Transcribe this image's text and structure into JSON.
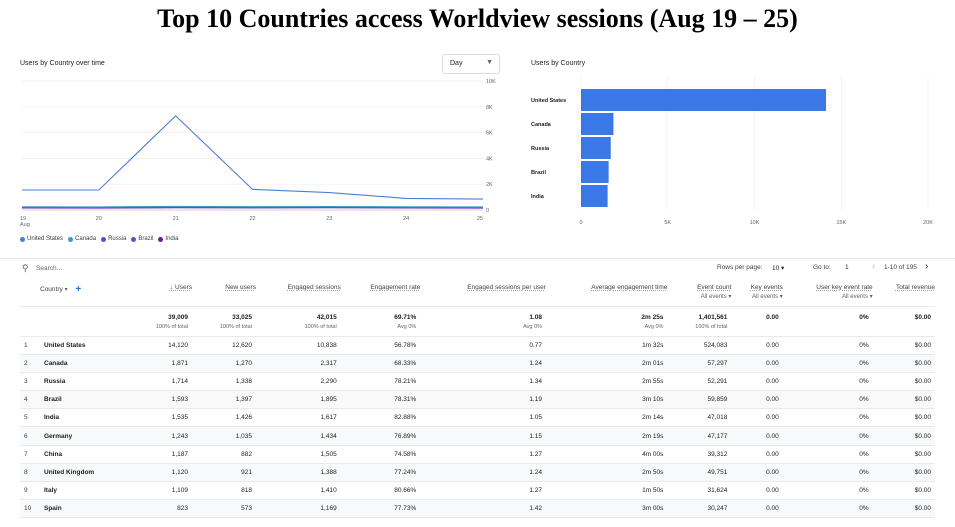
{
  "page_title": "Top 10 Countries access Worldview sessions (Aug 19 – 25)",
  "line_card": {
    "title": "Users by Country over time",
    "granularity": "Day",
    "legend": [
      {
        "label": "United States",
        "color": "#4a7fd4"
      },
      {
        "label": "Canada",
        "color": "#3d9ad1"
      },
      {
        "label": "Russia",
        "color": "#5b4ad6"
      },
      {
        "label": "Brazil",
        "color": "#7b3fd0"
      },
      {
        "label": "India",
        "color": "#6a1b9a"
      }
    ]
  },
  "bar_card": {
    "title": "Users by Country"
  },
  "chart_data": [
    {
      "type": "line",
      "title": "Users by Country over time",
      "x": [
        "19 Aug",
        "20",
        "21",
        "22",
        "23",
        "24",
        "25"
      ],
      "x_tick_sub": "Aug",
      "ylim": [
        0,
        10000
      ],
      "y_ticks": [
        "0",
        "2K",
        "4K",
        "6K",
        "8K",
        "10K"
      ],
      "grid": true,
      "legend_position": "bottom-left",
      "series": [
        {
          "name": "United States",
          "color": "#4a7fd4",
          "values": [
            1550,
            1550,
            7300,
            1600,
            1350,
            900,
            850
          ]
        },
        {
          "name": "Canada",
          "color": "#3d9ad1",
          "values": [
            250,
            240,
            280,
            260,
            270,
            250,
            240
          ]
        },
        {
          "name": "Russia",
          "color": "#5b4ad6",
          "values": [
            200,
            190,
            230,
            210,
            220,
            200,
            190
          ]
        },
        {
          "name": "Brazil",
          "color": "#7b3fd0",
          "values": [
            180,
            170,
            200,
            190,
            200,
            180,
            170
          ]
        },
        {
          "name": "India",
          "color": "#6a1b9a",
          "values": [
            160,
            150,
            180,
            170,
            180,
            160,
            150
          ]
        }
      ]
    },
    {
      "type": "bar",
      "orientation": "horizontal",
      "title": "Users by Country",
      "categories": [
        "United States",
        "Canada",
        "Russia",
        "Brazil",
        "India"
      ],
      "values": [
        14120,
        1871,
        1714,
        1593,
        1535
      ],
      "xlim": [
        0,
        20000
      ],
      "x_ticks": [
        "0",
        "5K",
        "10K",
        "15K",
        "20K"
      ],
      "color": "#3b78e7",
      "grid": true
    }
  ],
  "table": {
    "search_placeholder": "Search...",
    "rows_per_page_label": "Rows per page:",
    "rows_per_page": "10",
    "goto_label": "Go to:",
    "goto_value": "1",
    "page_range": "1-10 of 195",
    "columns": {
      "country": "Country",
      "users": "↓ Users",
      "new_users": "New users",
      "engaged_sessions": "Engaged sessions",
      "engagement_rate": "Engagement rate",
      "sessions_per_user": "Engaged sessions per user",
      "avg_engagement": "Average engagement time",
      "event_count": "Event count",
      "event_count_sub": "All events ▾",
      "key_events": "Key events",
      "key_events_sub": "All events ▾",
      "key_event_rate": "User key event rate",
      "key_event_rate_sub": "All events ▾",
      "total_revenue": "Total revenue"
    },
    "totals": {
      "users": "39,009",
      "users_sub": "100% of total",
      "new_users": "33,025",
      "new_users_sub": "100% of total",
      "engaged_sessions": "42,015",
      "engaged_sessions_sub": "100% of total",
      "engagement_rate": "69.71%",
      "engagement_rate_sub": "Avg 0%",
      "sessions_per_user": "1.08",
      "sessions_per_user_sub": "Avg 0%",
      "avg_engagement": "2m 25s",
      "avg_engagement_sub": "Avg 0%",
      "event_count": "1,401,561",
      "event_count_sub": "100% of total",
      "key_events": "0.00",
      "key_event_rate": "0%",
      "total_revenue": "$0.00"
    },
    "rows": [
      {
        "idx": "1",
        "country": "United States",
        "users": "14,120",
        "new_users": "12,620",
        "engaged_sessions": "10,838",
        "engagement_rate": "56.78%",
        "sessions_per_user": "0.77",
        "avg_engagement": "1m 32s",
        "event_count": "524,083",
        "key_events": "0.00",
        "key_event_rate": "0%",
        "total_revenue": "$0.00"
      },
      {
        "idx": "2",
        "country": "Canada",
        "users": "1,871",
        "new_users": "1,270",
        "engaged_sessions": "2,317",
        "engagement_rate": "68.33%",
        "sessions_per_user": "1.24",
        "avg_engagement": "2m 01s",
        "event_count": "57,297",
        "key_events": "0.00",
        "key_event_rate": "0%",
        "total_revenue": "$0.00"
      },
      {
        "idx": "3",
        "country": "Russia",
        "users": "1,714",
        "new_users": "1,338",
        "engaged_sessions": "2,290",
        "engagement_rate": "78.21%",
        "sessions_per_user": "1.34",
        "avg_engagement": "2m 55s",
        "event_count": "52,291",
        "key_events": "0.00",
        "key_event_rate": "0%",
        "total_revenue": "$0.00"
      },
      {
        "idx": "4",
        "country": "Brazil",
        "users": "1,593",
        "new_users": "1,397",
        "engaged_sessions": "1,895",
        "engagement_rate": "78.31%",
        "sessions_per_user": "1.19",
        "avg_engagement": "3m 10s",
        "event_count": "59,859",
        "key_events": "0.00",
        "key_event_rate": "0%",
        "total_revenue": "$0.00"
      },
      {
        "idx": "5",
        "country": "India",
        "users": "1,535",
        "new_users": "1,426",
        "engaged_sessions": "1,617",
        "engagement_rate": "82.88%",
        "sessions_per_user": "1.05",
        "avg_engagement": "2m 14s",
        "event_count": "47,018",
        "key_events": "0.00",
        "key_event_rate": "0%",
        "total_revenue": "$0.00"
      },
      {
        "idx": "6",
        "country": "Germany",
        "users": "1,243",
        "new_users": "1,035",
        "engaged_sessions": "1,434",
        "engagement_rate": "76.89%",
        "sessions_per_user": "1.15",
        "avg_engagement": "2m 19s",
        "event_count": "47,177",
        "key_events": "0.00",
        "key_event_rate": "0%",
        "total_revenue": "$0.00"
      },
      {
        "idx": "7",
        "country": "China",
        "users": "1,187",
        "new_users": "882",
        "engaged_sessions": "1,505",
        "engagement_rate": "74.58%",
        "sessions_per_user": "1.27",
        "avg_engagement": "4m 00s",
        "event_count": "39,312",
        "key_events": "0.00",
        "key_event_rate": "0%",
        "total_revenue": "$0.00"
      },
      {
        "idx": "8",
        "country": "United Kingdom",
        "users": "1,120",
        "new_users": "921",
        "engaged_sessions": "1,388",
        "engagement_rate": "77.24%",
        "sessions_per_user": "1.24",
        "avg_engagement": "2m 50s",
        "event_count": "49,751",
        "key_events": "0.00",
        "key_event_rate": "0%",
        "total_revenue": "$0.00"
      },
      {
        "idx": "9",
        "country": "Italy",
        "users": "1,109",
        "new_users": "818",
        "engaged_sessions": "1,410",
        "engagement_rate": "80.66%",
        "sessions_per_user": "1.27",
        "avg_engagement": "1m 50s",
        "event_count": "31,624",
        "key_events": "0.00",
        "key_event_rate": "0%",
        "total_revenue": "$0.00"
      },
      {
        "idx": "10",
        "country": "Spain",
        "users": "823",
        "new_users": "573",
        "engaged_sessions": "1,169",
        "engagement_rate": "77.73%",
        "sessions_per_user": "1.42",
        "avg_engagement": "3m 00s",
        "event_count": "30,247",
        "key_events": "0.00",
        "key_event_rate": "0%",
        "total_revenue": "$0.00"
      }
    ]
  }
}
